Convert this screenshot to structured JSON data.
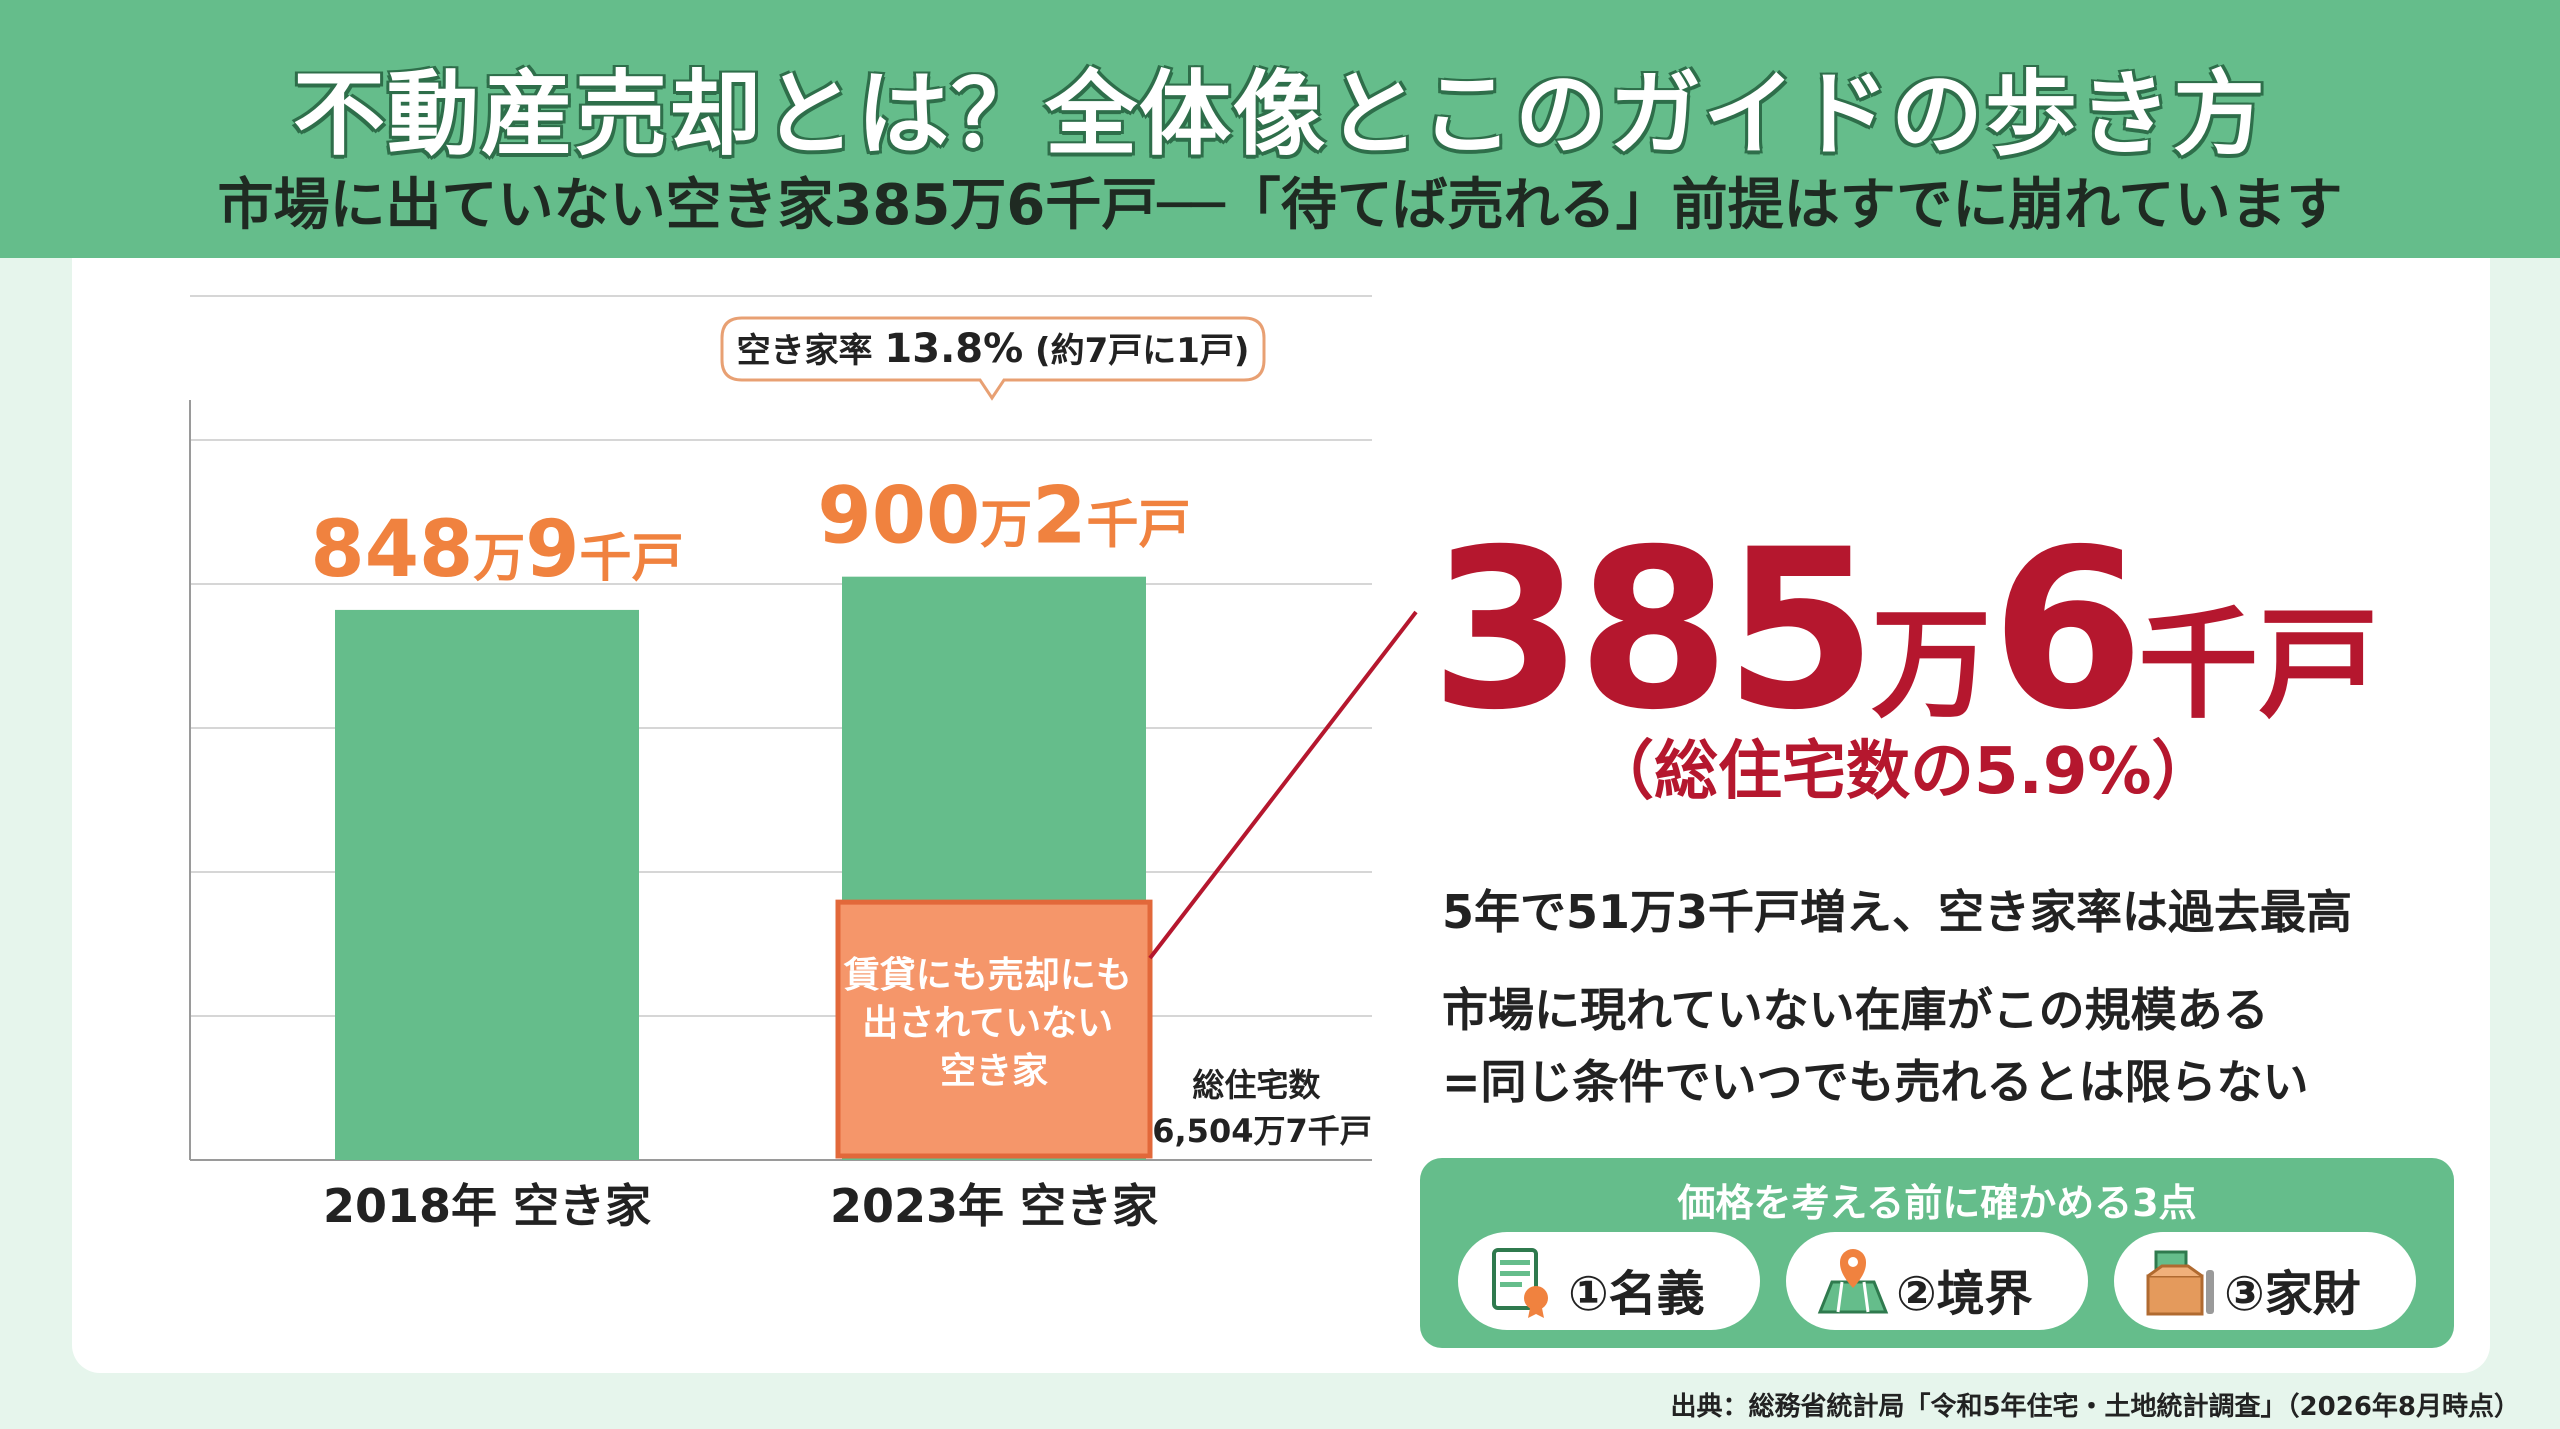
{
  "header": {
    "title": "不動産売却とは？全体像とこのガイドの歩き方",
    "subtitle": "市場に出ていない空き家385万6千戸──「待てば売れる」前提はすでに崩れています"
  },
  "chart_data": {
    "type": "bar",
    "categories": [
      "2018年 空き家",
      "2023年 空き家"
    ],
    "values": [
      848.9,
      900.2
    ],
    "unit": "万戸",
    "value_labels": [
      {
        "num": "848",
        "man": "万",
        "num2": "9",
        "sen": "千戸"
      },
      {
        "num": "900",
        "man": "万",
        "num2": "2",
        "sen": "千戸"
      }
    ],
    "segment": {
      "category": "2023年 空き家",
      "value": 385.6,
      "label_lines": [
        "賃貸にも売却にも",
        "出されていない",
        "空き家"
      ]
    },
    "callout": {
      "prefix": "空き家率 ",
      "value": "13.8%",
      "suffix": " (約7戸に1戸)"
    },
    "side_note_lines": [
      "総住宅数",
      "6,504万7千戸"
    ],
    "ylim": [
      0,
      1000
    ],
    "grid": true
  },
  "highlight": {
    "number": "385",
    "man": "万",
    "number2": "6",
    "unit": "千戸",
    "percent": "（総住宅数の5.9%）"
  },
  "notes": {
    "line1": "5年で51万3千戸増え、空き家率は過去最高",
    "line2": "市場に現れていない在庫がこの規模ある",
    "line3": "=同じ条件でいつでも売れるとは限らない"
  },
  "checklist": {
    "title": "価格を考える前に確かめる3点",
    "items": [
      {
        "label": "①名義",
        "icon": "document-certificate-icon"
      },
      {
        "label": "②境界",
        "icon": "map-pin-icon"
      },
      {
        "label": "③家財",
        "icon": "moving-box-icon"
      }
    ]
  },
  "source": "出典：総務省統計局「令和5年住宅・土地統計調査」（2026年8月時点）",
  "colors": {
    "header_bg": "#65bd8b",
    "bar_green": "#65bd8b",
    "orange": "#f0823f",
    "segment_fill": "#f5966a",
    "highlight_red": "#b5172e"
  }
}
